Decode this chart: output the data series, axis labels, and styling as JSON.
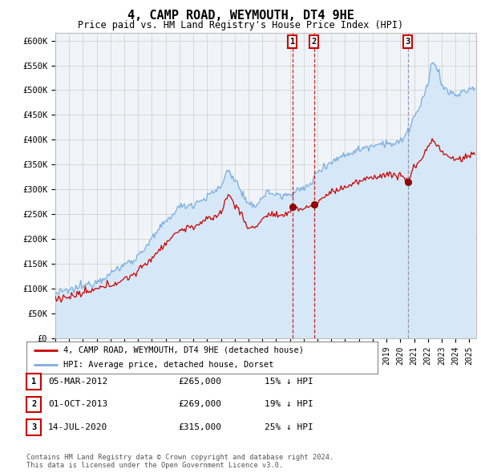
{
  "title": "4, CAMP ROAD, WEYMOUTH, DT4 9HE",
  "subtitle": "Price paid vs. HM Land Registry's House Price Index (HPI)",
  "ylabel_ticks": [
    "£0",
    "£50K",
    "£100K",
    "£150K",
    "£200K",
    "£250K",
    "£300K",
    "£350K",
    "£400K",
    "£450K",
    "£500K",
    "£550K",
    "£600K"
  ],
  "ytick_values": [
    0,
    50000,
    100000,
    150000,
    200000,
    250000,
    300000,
    350000,
    400000,
    450000,
    500000,
    550000,
    600000
  ],
  "ylim": [
    0,
    615000
  ],
  "xlim_start": 1995.0,
  "xlim_end": 2025.5,
  "legend_line1": "4, CAMP ROAD, WEYMOUTH, DT4 9HE (detached house)",
  "legend_line2": "HPI: Average price, detached house, Dorset",
  "line1_color": "#cc0000",
  "line2_color": "#7aade0",
  "line2_fill_color": "#d6e8f7",
  "transactions": [
    {
      "label": "1",
      "date": 2012.18,
      "price": 265000,
      "pct": "15%",
      "date_str": "05-MAR-2012",
      "vline_color": "#cc0000",
      "vline_style": "--"
    },
    {
      "label": "2",
      "date": 2013.75,
      "price": 269000,
      "pct": "19%",
      "date_str": "01-OCT-2013",
      "vline_color": "#cc0000",
      "vline_style": "--"
    },
    {
      "label": "3",
      "date": 2020.54,
      "price": 315000,
      "pct": "25%",
      "date_str": "14-JUL-2020",
      "vline_color": "#8888aa",
      "vline_style": "--"
    }
  ],
  "footer1": "Contains HM Land Registry data © Crown copyright and database right 2024.",
  "footer2": "This data is licensed under the Open Government Licence v3.0.",
  "background_color": "#ffffff",
  "plot_bg_color": "#f0f4f8"
}
